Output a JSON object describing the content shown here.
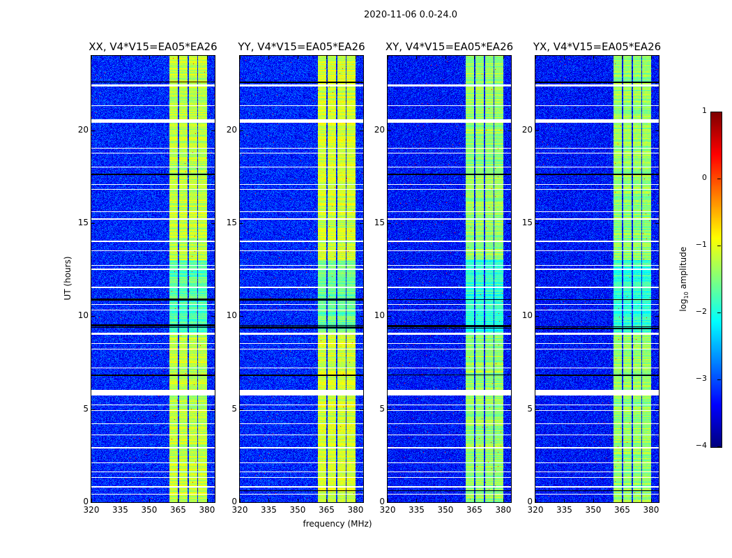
{
  "chart_data": {
    "type": "heatmap",
    "title": "2020-11-06 0.0-24.0",
    "xlabel": "frequency (MHz)",
    "ylabel": "UT (hours)",
    "xlim": [
      320,
      384
    ],
    "ylim": [
      0,
      24
    ],
    "xticks": [
      "320",
      "335",
      "350",
      "365",
      "380"
    ],
    "xtick_values": [
      320,
      335,
      350,
      365,
      380
    ],
    "yticks": [
      "0",
      "5",
      "10",
      "15",
      "20"
    ],
    "ytick_values": [
      0,
      5,
      10,
      15,
      20
    ],
    "panels": [
      {
        "title": "XX, V4*V15=EA05*EA26",
        "band_level": -1.2,
        "background_level": -3.2
      },
      {
        "title": "YY, V4*V15=EA05*EA26",
        "band_level": -1.1,
        "background_level": -3.2
      },
      {
        "title": "XY, V4*V15=EA05*EA26",
        "band_level": -1.4,
        "background_level": -3.3
      },
      {
        "title": "YX, V4*V15=EA05*EA26",
        "band_level": -1.4,
        "background_level": -3.3
      }
    ],
    "signal_bands_mhz": [
      [
        360.5,
        365
      ],
      [
        365.5,
        370
      ],
      [
        370.5,
        375
      ],
      [
        375.5,
        380
      ]
    ],
    "flagged_hours_white": [
      [
        22.35,
        22.45
      ],
      [
        21.3,
        21.35
      ],
      [
        20.4,
        20.6
      ],
      [
        19.0,
        19.05
      ],
      [
        18.75,
        18.8
      ],
      [
        18.0,
        18.05
      ],
      [
        17.05,
        17.1
      ],
      [
        16.8,
        16.85
      ],
      [
        15.6,
        15.65
      ],
      [
        15.2,
        15.25
      ],
      [
        14.0,
        14.05
      ],
      [
        13.5,
        13.55
      ],
      [
        12.7,
        12.75
      ],
      [
        12.5,
        12.55
      ],
      [
        11.5,
        11.6
      ],
      [
        10.6,
        10.65
      ],
      [
        10.3,
        10.35
      ],
      [
        9.0,
        9.1
      ],
      [
        8.5,
        8.55
      ],
      [
        8.2,
        8.25
      ],
      [
        7.2,
        7.25
      ],
      [
        5.75,
        6.05
      ],
      [
        5.2,
        5.25
      ],
      [
        4.9,
        4.95
      ],
      [
        4.2,
        4.25
      ],
      [
        3.6,
        3.65
      ],
      [
        2.9,
        2.95
      ],
      [
        2.1,
        2.15
      ],
      [
        1.6,
        1.65
      ],
      [
        1.3,
        1.35
      ],
      [
        0.8,
        0.85
      ],
      [
        0.4,
        0.45
      ]
    ],
    "flagged_hours_black": [
      [
        22.55,
        22.6
      ],
      [
        17.6,
        17.65
      ],
      [
        10.85,
        10.95
      ],
      [
        9.3,
        9.55
      ],
      [
        6.8,
        6.85
      ],
      [
        0.6,
        0.65
      ]
    ],
    "colorbar": {
      "label_main": "log",
      "label_sub": "10",
      "label_rest": " amplitude",
      "range": [
        -4,
        1
      ],
      "ticks": [
        "−4",
        "−3",
        "−2",
        "−1",
        "0",
        "1"
      ],
      "tick_values": [
        -4,
        -3,
        -2,
        -1,
        0,
        1
      ],
      "colormap": "jet"
    }
  }
}
